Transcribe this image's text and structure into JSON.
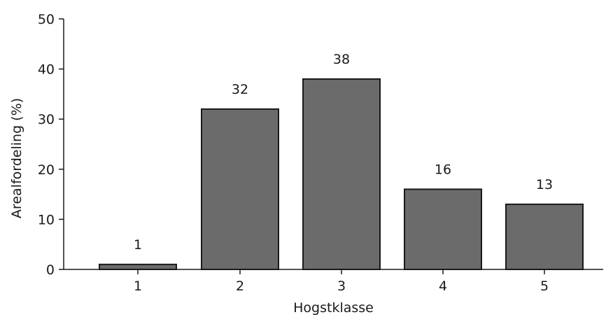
{
  "chart_data": {
    "type": "bar",
    "title": "",
    "xlabel": "Hogstklasse",
    "ylabel": "Arealfordeling (%)",
    "categories": [
      "1",
      "2",
      "3",
      "4",
      "5"
    ],
    "values": [
      1,
      32,
      38,
      16,
      13
    ],
    "data_labels": [
      "1",
      "32",
      "38",
      "16",
      "13"
    ],
    "ylim": [
      0,
      50
    ],
    "yticks": [
      0,
      10,
      20,
      30,
      40,
      50
    ],
    "grid": false,
    "legend": "none",
    "bar_color": "#6b6b6b",
    "bar_edge_color": "#1a1a1a",
    "axis_color": "#1a1a1a"
  }
}
